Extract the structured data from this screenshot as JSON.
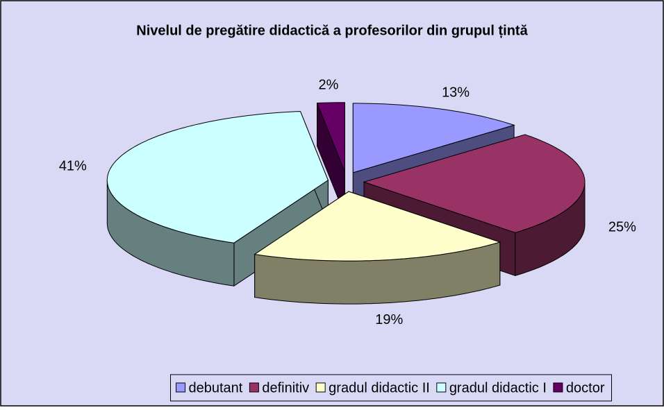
{
  "chart_data": {
    "type": "pie",
    "title": "Nivelul de pregătire didactică a profesorilor din grupul țintă",
    "categories": [
      "debutant",
      "definitiv",
      "gradul didactic II",
      "gradul didactic I",
      "doctor"
    ],
    "values": [
      13,
      25,
      19,
      41,
      2
    ],
    "value_labels": [
      "13%",
      "25%",
      "19%",
      "41%",
      "2%"
    ],
    "colors": [
      "#9999ff",
      "#993366",
      "#ffffcc",
      "#ccffff",
      "#660066"
    ],
    "legend": "bottom"
  }
}
